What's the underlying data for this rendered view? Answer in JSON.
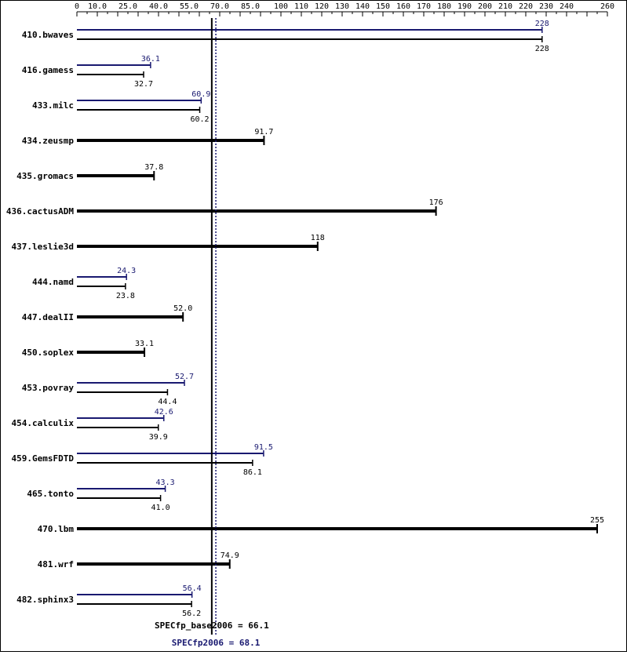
{
  "chart_data": {
    "type": "bar",
    "title": "",
    "xlabel": "",
    "ylabel": "",
    "xlim": [
      0,
      260
    ],
    "axis_position": "top",
    "grid": false,
    "axis_ticks": [
      {
        "value": 0,
        "label": "0"
      },
      {
        "value": 10,
        "label": "10.0"
      },
      {
        "value": 25,
        "label": "25.0"
      },
      {
        "value": 40,
        "label": "40.0"
      },
      {
        "value": 55,
        "label": "55.0"
      },
      {
        "value": 70,
        "label": "70.0"
      },
      {
        "value": 85,
        "label": "85.0"
      },
      {
        "value": 100,
        "label": "100"
      },
      {
        "value": 110,
        "label": "110"
      },
      {
        "value": 120,
        "label": "120"
      },
      {
        "value": 130,
        "label": "130"
      },
      {
        "value": 140,
        "label": "140"
      },
      {
        "value": 150,
        "label": "150"
      },
      {
        "value": 160,
        "label": "160"
      },
      {
        "value": 170,
        "label": "170"
      },
      {
        "value": 180,
        "label": "180"
      },
      {
        "value": 190,
        "label": "190"
      },
      {
        "value": 200,
        "label": "200"
      },
      {
        "value": 210,
        "label": "210"
      },
      {
        "value": 220,
        "label": "220"
      },
      {
        "value": 230,
        "label": "230"
      },
      {
        "value": 240,
        "label": "240"
      },
      {
        "value": 260,
        "label": "260"
      }
    ],
    "colors": {
      "peak": "#191970",
      "base": "#000000",
      "axis": "#000000"
    },
    "benchmarks": [
      {
        "name": "410.bwaves",
        "peak": 228,
        "peak_label": "228",
        "base": 228,
        "base_label": "228"
      },
      {
        "name": "416.gamess",
        "peak": 36.1,
        "peak_label": "36.1",
        "base": 32.7,
        "base_label": "32.7"
      },
      {
        "name": "433.milc",
        "peak": 60.9,
        "peak_label": "60.9",
        "base": 60.2,
        "base_label": "60.2"
      },
      {
        "name": "434.zeusmp",
        "peak": null,
        "peak_label": "",
        "base": 91.7,
        "base_label": "91.7"
      },
      {
        "name": "435.gromacs",
        "peak": null,
        "peak_label": "",
        "base": 37.8,
        "base_label": "37.8"
      },
      {
        "name": "436.cactusADM",
        "peak": null,
        "peak_label": "",
        "base": 176,
        "base_label": "176"
      },
      {
        "name": "437.leslie3d",
        "peak": null,
        "peak_label": "",
        "base": 118,
        "base_label": "118"
      },
      {
        "name": "444.namd",
        "peak": 24.3,
        "peak_label": "24.3",
        "base": 23.8,
        "base_label": "23.8"
      },
      {
        "name": "447.dealII",
        "peak": null,
        "peak_label": "",
        "base": 52.0,
        "base_label": "52.0"
      },
      {
        "name": "450.soplex",
        "peak": null,
        "peak_label": "",
        "base": 33.1,
        "base_label": "33.1"
      },
      {
        "name": "453.povray",
        "peak": 52.7,
        "peak_label": "52.7",
        "base": 44.4,
        "base_label": "44.4"
      },
      {
        "name": "454.calculix",
        "peak": 42.6,
        "peak_label": "42.6",
        "base": 39.9,
        "base_label": "39.9"
      },
      {
        "name": "459.GemsFDTD",
        "peak": 91.5,
        "peak_label": "91.5",
        "base": 86.1,
        "base_label": "86.1"
      },
      {
        "name": "465.tonto",
        "peak": 43.3,
        "peak_label": "43.3",
        "base": 41.0,
        "base_label": "41.0"
      },
      {
        "name": "470.lbm",
        "peak": null,
        "peak_label": "",
        "base": 255,
        "base_label": "255"
      },
      {
        "name": "481.wrf",
        "peak": null,
        "peak_label": "",
        "base": 74.9,
        "base_label": "74.9"
      },
      {
        "name": "482.sphinx3",
        "peak": 56.4,
        "peak_label": "56.4",
        "base": 56.2,
        "base_label": "56.2"
      }
    ],
    "summary": {
      "base_value": 66.1,
      "base_label": "SPECfp_base2006 = 66.1",
      "peak_value": 68.1,
      "peak_label": "SPECfp2006 = 68.1"
    }
  }
}
